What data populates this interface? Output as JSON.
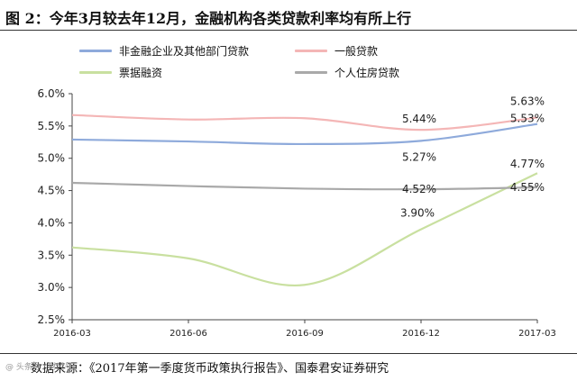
{
  "title": "图 2：今年3月较去年12月，金融机构各类贷款利率均有所上行",
  "source": "数据来源：《2017年第一季度货币政策执行报告》、国泰君安证券研究",
  "watermark": "@ 头条号 / 财经号",
  "colors": {
    "series_1": "#8eaadb",
    "series_2": "#f4b6b6",
    "series_3": "#c9e0a0",
    "series_4": "#a9a9a9"
  },
  "chart_data": {
    "type": "line",
    "categories": [
      "2016-03",
      "2016-06",
      "2016-09",
      "2016-12",
      "2017-03"
    ],
    "ylim": [
      2.5,
      6.0
    ],
    "yticks": [
      "2.5%",
      "3.0%",
      "3.5%",
      "4.0%",
      "4.5%",
      "5.0%",
      "5.5%",
      "6.0%"
    ],
    "ytick_values": [
      2.5,
      3.0,
      3.5,
      4.0,
      4.5,
      5.0,
      5.5,
      6.0
    ],
    "legend_position": "top",
    "grid": false,
    "series": [
      {
        "name": "非金融企业及其他部门贷款",
        "values": [
          5.29,
          5.26,
          5.22,
          5.27,
          5.53
        ]
      },
      {
        "name": "一般贷款",
        "values": [
          5.67,
          5.6,
          5.62,
          5.44,
          5.63
        ]
      },
      {
        "name": "票据融资",
        "values": [
          3.62,
          3.45,
          3.04,
          3.9,
          4.77
        ]
      },
      {
        "name": "个人住房贷款",
        "values": [
          4.62,
          4.57,
          4.53,
          4.52,
          4.55
        ]
      }
    ],
    "data_labels": [
      {
        "text": "5.44%",
        "series": 1,
        "index": 3
      },
      {
        "text": "5.63%",
        "series": 1,
        "index": 4
      },
      {
        "text": "5.27%",
        "series": 0,
        "index": 3
      },
      {
        "text": "5.53%",
        "series": 0,
        "index": 4
      },
      {
        "text": "4.77%",
        "series": 2,
        "index": 4
      },
      {
        "text": "4.52%",
        "series": 3,
        "index": 3
      },
      {
        "text": "4.55%",
        "series": 3,
        "index": 4
      },
      {
        "text": "3.90%",
        "series": 2,
        "index": 3
      }
    ]
  }
}
